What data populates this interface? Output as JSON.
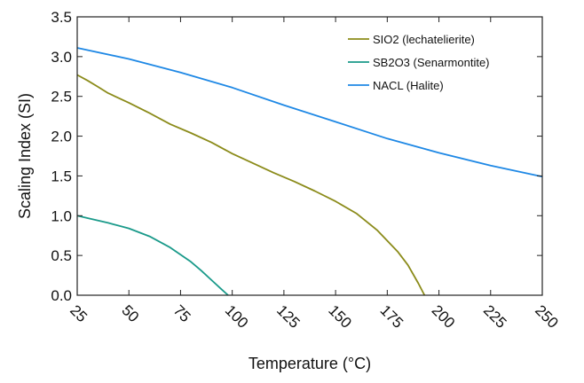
{
  "chart_data": {
    "type": "line",
    "title": "",
    "xlabel": "Temperature (°C)",
    "ylabel": "Scaling Index (SI)",
    "xlim": [
      25,
      250
    ],
    "ylim": [
      0.0,
      3.5
    ],
    "xticks": [
      "25",
      "50",
      "75",
      "100",
      "125",
      "150",
      "175",
      "200",
      "225",
      "250"
    ],
    "yticks": [
      "0.0",
      "0.5",
      "1.0",
      "1.5",
      "2.0",
      "2.5",
      "3.0",
      "3.5"
    ],
    "grid": false,
    "legend_position": "top-right",
    "series": [
      {
        "name": "SIO2 (lechatelierite)",
        "color": "#8b8b1a",
        "x": [
          25,
          30,
          35,
          40,
          50,
          60,
          70,
          80,
          90,
          100,
          110,
          120,
          130,
          140,
          150,
          160,
          170,
          180,
          185,
          190,
          193
        ],
        "y": [
          2.77,
          2.7,
          2.62,
          2.54,
          2.42,
          2.29,
          2.15,
          2.04,
          1.92,
          1.78,
          1.66,
          1.54,
          1.43,
          1.31,
          1.18,
          1.03,
          0.82,
          0.55,
          0.38,
          0.15,
          0.0
        ]
      },
      {
        "name": "SB2O3 (Senarmontite)",
        "color": "#1a9a8a",
        "x": [
          25,
          30,
          40,
          50,
          60,
          70,
          80,
          85,
          90,
          95,
          98
        ],
        "y": [
          1.0,
          0.97,
          0.91,
          0.84,
          0.74,
          0.6,
          0.42,
          0.31,
          0.19,
          0.07,
          0.0
        ]
      },
      {
        "name": "NACL (Halite)",
        "color": "#1e88e5",
        "x": [
          25,
          50,
          75,
          100,
          125,
          150,
          175,
          200,
          225,
          250
        ],
        "y": [
          3.11,
          2.97,
          2.8,
          2.61,
          2.39,
          2.18,
          1.97,
          1.79,
          1.63,
          1.49
        ]
      }
    ]
  }
}
